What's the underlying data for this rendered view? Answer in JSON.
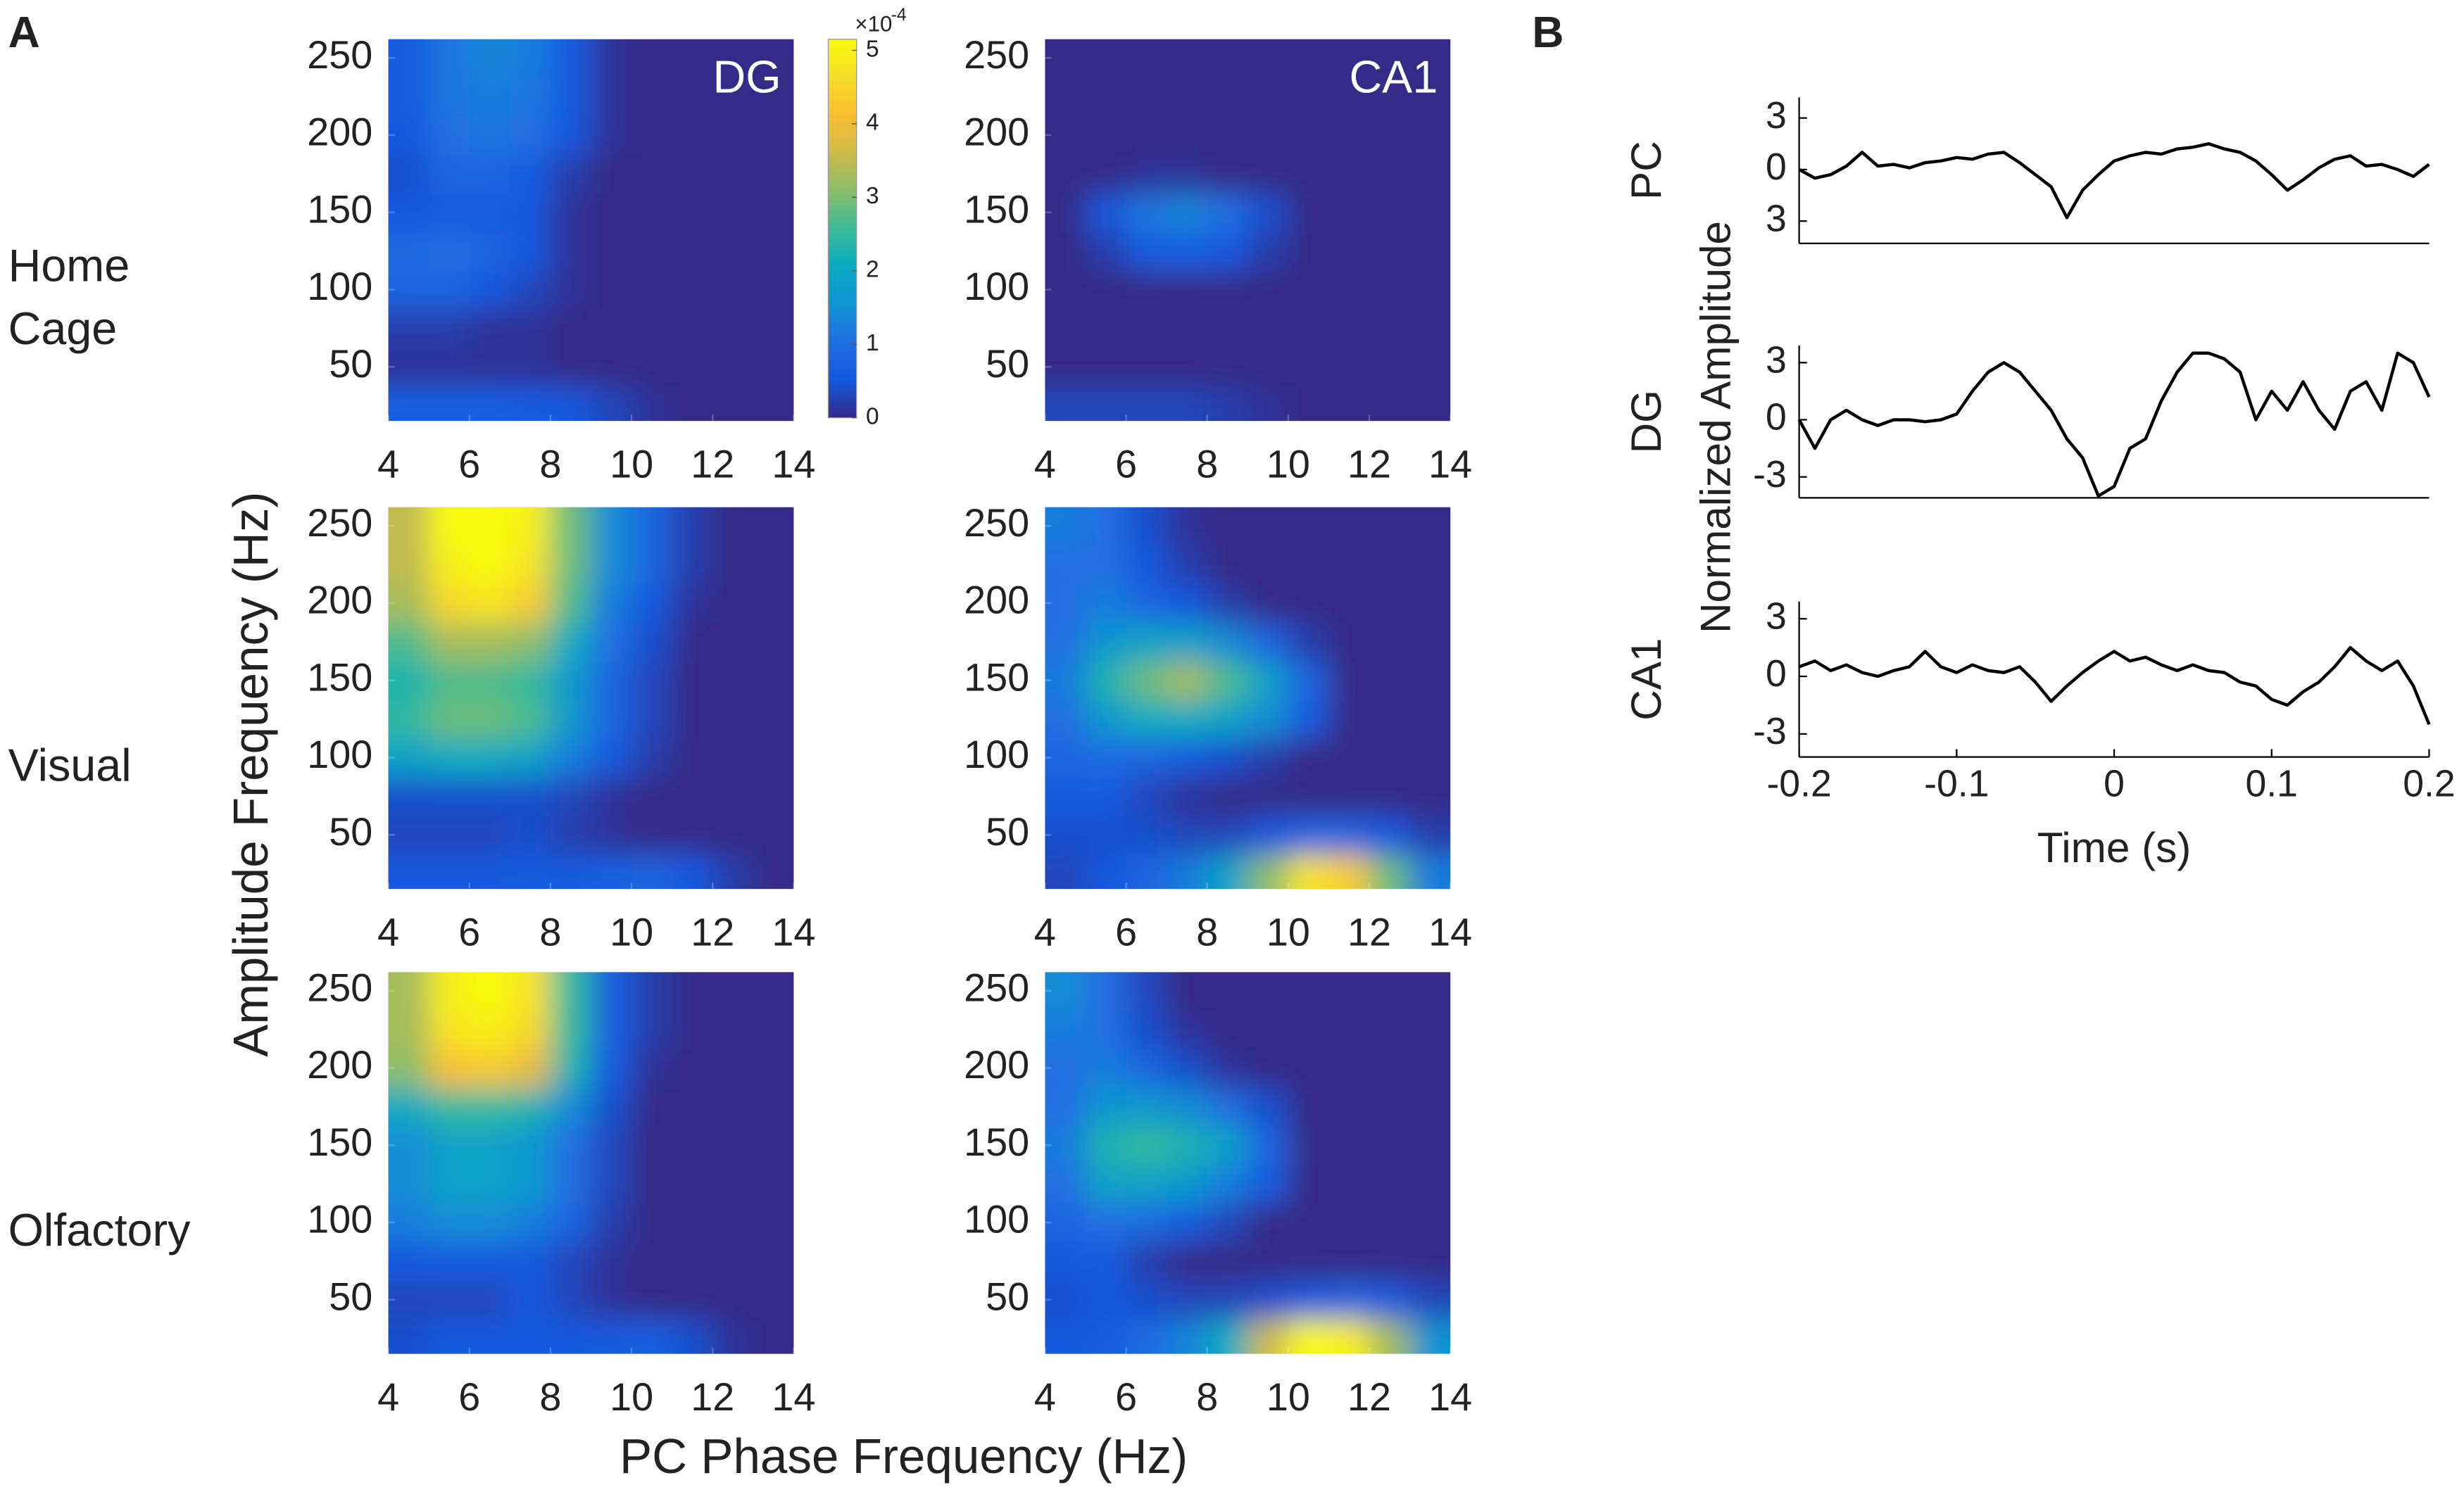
{
  "figure": {
    "panel_a": {
      "label": "A",
      "ylabel": "Amplitude Frequency (Hz)",
      "xlabel": "PC Phase Frequency (Hz)",
      "row_labels": [
        "Home Cage",
        "Visual",
        "Olfactory"
      ]
    },
    "panel_b": {
      "label": "B"
    }
  },
  "chart_data": [
    {
      "type": "heatmap",
      "title": "DG",
      "x": [
        4.5,
        5.5,
        6.5,
        7.5,
        8.5,
        9.5,
        10.5,
        11.5,
        12.5,
        13.5
      ],
      "y": [
        25,
        50,
        75,
        100,
        125,
        150,
        175,
        200,
        225,
        250
      ],
      "z": [
        [
          0.7,
          0.7,
          0.7,
          0.6,
          0.5,
          0.3,
          0.1,
          0,
          0,
          0
        ],
        [
          0.1,
          0.1,
          0.1,
          0.1,
          0,
          0,
          0,
          0,
          0,
          0
        ],
        [
          0.2,
          0.2,
          0.1,
          0.1,
          0,
          0,
          0,
          0,
          0,
          0
        ],
        [
          0.8,
          0.8,
          0.5,
          0.3,
          0.1,
          0,
          0,
          0,
          0,
          0
        ],
        [
          0.9,
          1.0,
          0.8,
          0.5,
          0.1,
          0,
          0,
          0,
          0,
          0
        ],
        [
          0.5,
          0.6,
          0.6,
          0.5,
          0.1,
          0,
          0,
          0,
          0,
          0
        ],
        [
          0.4,
          0.8,
          0.8,
          0.6,
          0.2,
          0,
          0,
          0,
          0,
          0
        ],
        [
          0.5,
          1.0,
          1.1,
          1.0,
          0.5,
          0.1,
          0,
          0,
          0,
          0
        ],
        [
          0.6,
          1.1,
          1.2,
          1.1,
          0.6,
          0.1,
          0,
          0,
          0,
          0
        ],
        [
          0.6,
          1.1,
          1.3,
          1.2,
          0.6,
          0.1,
          0,
          0,
          0,
          0
        ]
      ],
      "zlim": [
        0,
        5
      ],
      "xlim": [
        4,
        14
      ],
      "ylim": [
        15,
        262
      ],
      "xticks": [
        4,
        6,
        8,
        10,
        12,
        14
      ],
      "yticks": [
        50,
        100,
        150,
        200,
        250
      ],
      "colorbar": {
        "lim": [
          0,
          5.15
        ],
        "ticks": [
          0,
          1,
          2,
          3,
          4,
          5
        ],
        "multiplier": "×10",
        "exponent": "-4"
      }
    },
    {
      "type": "heatmap",
      "title": "CA1",
      "x": [
        4.5,
        5.5,
        6.5,
        7.5,
        8.5,
        9.5,
        10.5,
        11.5,
        12.5,
        13.5
      ],
      "y": [
        25,
        50,
        75,
        100,
        125,
        150,
        175,
        200,
        225,
        250
      ],
      "z": [
        [
          0.3,
          0.3,
          0.3,
          0.3,
          0.2,
          0.1,
          0,
          0,
          0,
          0
        ],
        [
          0,
          0,
          0,
          0,
          0,
          0,
          0,
          0,
          0,
          0
        ],
        [
          0,
          0,
          0,
          0,
          0,
          0,
          0,
          0,
          0,
          0
        ],
        [
          0,
          0,
          0,
          0,
          0,
          0,
          0,
          0,
          0,
          0
        ],
        [
          0,
          0.2,
          0.6,
          0.7,
          0.5,
          0.2,
          0,
          0,
          0,
          0
        ],
        [
          0,
          0.5,
          1.1,
          1.3,
          1.0,
          0.4,
          0,
          0,
          0,
          0
        ],
        [
          0,
          0,
          0.1,
          0.1,
          0,
          0,
          0,
          0,
          0,
          0
        ],
        [
          0,
          0,
          0,
          0,
          0,
          0,
          0,
          0,
          0,
          0
        ],
        [
          0,
          0,
          0,
          0,
          0,
          0,
          0,
          0,
          0,
          0
        ],
        [
          0,
          0,
          0,
          0,
          0,
          0,
          0,
          0,
          0,
          0
        ]
      ],
      "zlim": [
        0,
        5
      ],
      "xlim": [
        4,
        14
      ],
      "ylim": [
        15,
        262
      ],
      "xticks": [
        4,
        6,
        8,
        10,
        12,
        14
      ],
      "yticks": [
        50,
        100,
        150,
        200,
        250
      ]
    },
    {
      "type": "heatmap",
      "x": [
        4.5,
        5.5,
        6.5,
        7.5,
        8.5,
        9.5,
        10.5,
        11.5,
        12.5,
        13.5
      ],
      "y": [
        25,
        50,
        75,
        100,
        125,
        150,
        175,
        200,
        225,
        250
      ],
      "z": [
        [
          0.5,
          0.5,
          0.5,
          0.6,
          0.6,
          0.7,
          0.8,
          0.5,
          0.2,
          0
        ],
        [
          0.3,
          0.3,
          0.3,
          0.4,
          0.2,
          0.1,
          0,
          0,
          0,
          0
        ],
        [
          0.4,
          0.4,
          0.4,
          0.4,
          0.3,
          0.1,
          0,
          0,
          0,
          0
        ],
        [
          1.8,
          2.0,
          2.0,
          1.8,
          1.2,
          0.6,
          0.2,
          0,
          0,
          0
        ],
        [
          2.4,
          2.8,
          2.8,
          2.6,
          1.6,
          0.8,
          0.3,
          0,
          0,
          0
        ],
        [
          2.2,
          2.6,
          2.6,
          2.4,
          1.6,
          0.8,
          0.3,
          0,
          0,
          0
        ],
        [
          2.6,
          3.2,
          3.2,
          3.0,
          2.0,
          1.0,
          0.4,
          0,
          0,
          0
        ],
        [
          3.2,
          4.4,
          4.6,
          4.2,
          2.6,
          1.2,
          0.5,
          0.1,
          0,
          0
        ],
        [
          3.4,
          4.8,
          5.0,
          4.6,
          2.8,
          1.4,
          0.8,
          0.2,
          0,
          0
        ],
        [
          3.4,
          5.0,
          5.0,
          4.8,
          2.8,
          1.4,
          0.8,
          0.2,
          0,
          0
        ]
      ],
      "zlim": [
        0,
        5
      ],
      "xlim": [
        4,
        14
      ],
      "ylim": [
        15,
        262
      ],
      "xticks": [
        4,
        6,
        8,
        10,
        12,
        14
      ],
      "yticks": [
        50,
        100,
        150,
        200,
        250
      ]
    },
    {
      "type": "heatmap",
      "x": [
        4.5,
        5.5,
        6.5,
        7.5,
        8.5,
        9.5,
        10.5,
        11.5,
        12.5,
        13.5
      ],
      "y": [
        25,
        50,
        75,
        100,
        125,
        150,
        175,
        200,
        225,
        250
      ],
      "z": [
        [
          0.3,
          0.5,
          0.8,
          1.2,
          1.8,
          3.0,
          4.6,
          4.2,
          2.8,
          1.2
        ],
        [
          0.4,
          0.4,
          0.4,
          0.3,
          0.3,
          0.5,
          0.8,
          0.8,
          0.5,
          0.2
        ],
        [
          0.6,
          0.6,
          0.3,
          0.1,
          0,
          0,
          0,
          0,
          0,
          0
        ],
        [
          0.8,
          0.9,
          0.8,
          0.6,
          0.4,
          0.2,
          0,
          0,
          0,
          0
        ],
        [
          1.0,
          1.6,
          2.0,
          2.0,
          1.8,
          1.4,
          0.6,
          0,
          0,
          0
        ],
        [
          1.2,
          2.2,
          2.8,
          3.2,
          2.6,
          1.8,
          0.8,
          0,
          0,
          0
        ],
        [
          1.0,
          1.6,
          1.8,
          1.8,
          1.4,
          0.8,
          0.2,
          0,
          0,
          0
        ],
        [
          1.0,
          1.2,
          0.8,
          0.5,
          0.2,
          0,
          0,
          0,
          0,
          0
        ],
        [
          1.0,
          1.0,
          0.5,
          0.2,
          0,
          0,
          0,
          0,
          0,
          0
        ],
        [
          1.2,
          1.0,
          0.4,
          0.1,
          0,
          0,
          0,
          0,
          0,
          0
        ]
      ],
      "zlim": [
        0,
        5
      ],
      "xlim": [
        4,
        14
      ],
      "ylim": [
        15,
        262
      ],
      "xticks": [
        4,
        6,
        8,
        10,
        12,
        14
      ],
      "yticks": [
        50,
        100,
        150,
        200,
        250
      ]
    },
    {
      "type": "heatmap",
      "x": [
        4.5,
        5.5,
        6.5,
        7.5,
        8.5,
        9.5,
        10.5,
        11.5,
        12.5,
        13.5
      ],
      "y": [
        25,
        50,
        75,
        100,
        125,
        150,
        175,
        200,
        225,
        250
      ],
      "z": [
        [
          0.4,
          0.5,
          0.5,
          0.5,
          0.5,
          0.6,
          0.7,
          0.4,
          0.1,
          0
        ],
        [
          0.3,
          0.3,
          0.3,
          0.5,
          0.3,
          0.1,
          0,
          0,
          0,
          0
        ],
        [
          0.5,
          0.6,
          0.6,
          0.5,
          0.3,
          0.1,
          0,
          0,
          0,
          0
        ],
        [
          1.2,
          1.4,
          1.4,
          1.2,
          0.8,
          0.2,
          0,
          0,
          0,
          0
        ],
        [
          1.4,
          1.8,
          1.8,
          1.6,
          1.0,
          0.3,
          0,
          0,
          0,
          0
        ],
        [
          1.4,
          1.8,
          1.8,
          1.6,
          1.0,
          0.3,
          0,
          0,
          0,
          0
        ],
        [
          2.0,
          2.4,
          2.4,
          2.2,
          1.4,
          0.4,
          0,
          0,
          0,
          0
        ],
        [
          3.0,
          4.0,
          4.2,
          3.8,
          2.2,
          0.6,
          0.1,
          0,
          0,
          0
        ],
        [
          3.2,
          4.6,
          4.8,
          4.4,
          2.4,
          0.7,
          0.2,
          0,
          0,
          0
        ],
        [
          3.2,
          4.8,
          5.0,
          4.6,
          2.4,
          0.7,
          0.2,
          0,
          0,
          0
        ]
      ],
      "zlim": [
        0,
        5
      ],
      "xlim": [
        4,
        14
      ],
      "ylim": [
        15,
        262
      ],
      "xticks": [
        4,
        6,
        8,
        10,
        12,
        14
      ],
      "yticks": [
        50,
        100,
        150,
        200,
        250
      ]
    },
    {
      "type": "heatmap",
      "x": [
        4.5,
        5.5,
        6.5,
        7.5,
        8.5,
        9.5,
        10.5,
        11.5,
        12.5,
        13.5
      ],
      "y": [
        25,
        50,
        75,
        100,
        125,
        150,
        175,
        200,
        225,
        250
      ],
      "z": [
        [
          0.5,
          0.6,
          0.9,
          1.3,
          2.0,
          3.5,
          5.0,
          4.8,
          3.2,
          1.5
        ],
        [
          0.4,
          0.5,
          0.4,
          0.3,
          0.3,
          0.4,
          0.6,
          0.8,
          0.6,
          0.3
        ],
        [
          0.5,
          0.6,
          0.2,
          0,
          0,
          0,
          0,
          0,
          0,
          0
        ],
        [
          0.8,
          1.0,
          0.9,
          0.6,
          0.3,
          0,
          0,
          0,
          0,
          0
        ],
        [
          1.0,
          1.8,
          1.8,
          1.6,
          1.2,
          0.6,
          0,
          0,
          0,
          0
        ],
        [
          1.2,
          2.2,
          2.4,
          2.2,
          1.8,
          0.8,
          0,
          0,
          0,
          0
        ],
        [
          1.0,
          1.6,
          1.6,
          1.4,
          1.0,
          0.4,
          0,
          0,
          0,
          0
        ],
        [
          1.0,
          1.2,
          0.8,
          0.4,
          0.1,
          0,
          0,
          0,
          0,
          0
        ],
        [
          1.2,
          1.0,
          0.4,
          0.1,
          0,
          0,
          0,
          0,
          0,
          0
        ],
        [
          1.4,
          1.0,
          0.3,
          0,
          0,
          0,
          0,
          0,
          0,
          0
        ]
      ],
      "zlim": [
        0,
        5
      ],
      "xlim": [
        4,
        14
      ],
      "ylim": [
        15,
        262
      ],
      "xticks": [
        4,
        6,
        8,
        10,
        12,
        14
      ],
      "yticks": [
        50,
        100,
        150,
        200,
        250
      ]
    },
    {
      "type": "line",
      "ylabel": "Normalized Amplitude",
      "xlabel": "Time (s)",
      "x": [
        -0.2,
        -0.19,
        -0.18,
        -0.17,
        -0.16,
        -0.15,
        -0.14,
        -0.13,
        -0.12,
        -0.11,
        -0.1,
        -0.09,
        -0.08,
        -0.07,
        -0.06,
        -0.05,
        -0.04,
        -0.03,
        -0.02,
        -0.01,
        0,
        0.01,
        0.02,
        0.03,
        0.04,
        0.05,
        0.06,
        0.07,
        0.08,
        0.09,
        0.1,
        0.11,
        0.12,
        0.13,
        0.14,
        0.15,
        0.16,
        0.17,
        0.18,
        0.19,
        0.2
      ],
      "xlim": [
        -0.2,
        0.2
      ],
      "xticks": [
        -0.2,
        -0.1,
        0,
        0.1,
        0.2
      ],
      "series": [
        {
          "name": "PC",
          "color": "#000000",
          "ylim": [
            -4.3,
            4.2
          ],
          "yticks": [
            {
              "value": -3,
              "label": "3"
            },
            0,
            3
          ],
          "values": [
            0,
            -0.5,
            -0.3,
            0.2,
            1.0,
            0.2,
            0.3,
            0.1,
            0.4,
            0.5,
            0.7,
            0.6,
            0.9,
            1.0,
            0.4,
            -0.3,
            -1.0,
            -2.8,
            -1.2,
            -0.3,
            0.5,
            0.8,
            1.0,
            0.9,
            1.2,
            1.3,
            1.5,
            1.2,
            1.0,
            0.5,
            -0.3,
            -1.2,
            -0.6,
            0.1,
            0.6,
            0.8,
            0.2,
            0.3,
            0,
            -0.4,
            0.3
          ]
        },
        {
          "name": "DG",
          "color": "#000000",
          "ylim": [
            -4.1,
            3.9
          ],
          "yticks": [
            -3,
            0,
            3
          ],
          "values": [
            0,
            -1.5,
            0,
            0.5,
            0,
            -0.3,
            0,
            0,
            -0.1,
            0,
            0.3,
            1.5,
            2.5,
            3,
            2.5,
            1.5,
            0.5,
            -1.0,
            -2.0,
            -4.0,
            -3.5,
            -1.5,
            -1.0,
            1.0,
            2.5,
            3.5,
            3.5,
            3.2,
            2.5,
            0,
            1.5,
            0.5,
            2.0,
            0.5,
            -0.5,
            1.5,
            2.0,
            0.5,
            3.5,
            3.0,
            1.2
          ]
        },
        {
          "name": "CA1",
          "color": "#000000",
          "ylim": [
            -4.2,
            3.9
          ],
          "yticks": [
            -3,
            0,
            3
          ],
          "values": [
            0.5,
            0.8,
            0.3,
            0.6,
            0.2,
            0,
            0.3,
            0.5,
            1.3,
            0.5,
            0.2,
            0.6,
            0.3,
            0.2,
            0.5,
            -0.3,
            -1.3,
            -0.5,
            0.2,
            0.8,
            1.3,
            0.8,
            1.0,
            0.6,
            0.3,
            0.6,
            0.3,
            0.2,
            -0.3,
            -0.5,
            -1.2,
            -1.5,
            -0.8,
            -0.3,
            0.5,
            1.5,
            0.8,
            0.3,
            0.8,
            -0.5,
            -2.5
          ]
        }
      ]
    }
  ]
}
